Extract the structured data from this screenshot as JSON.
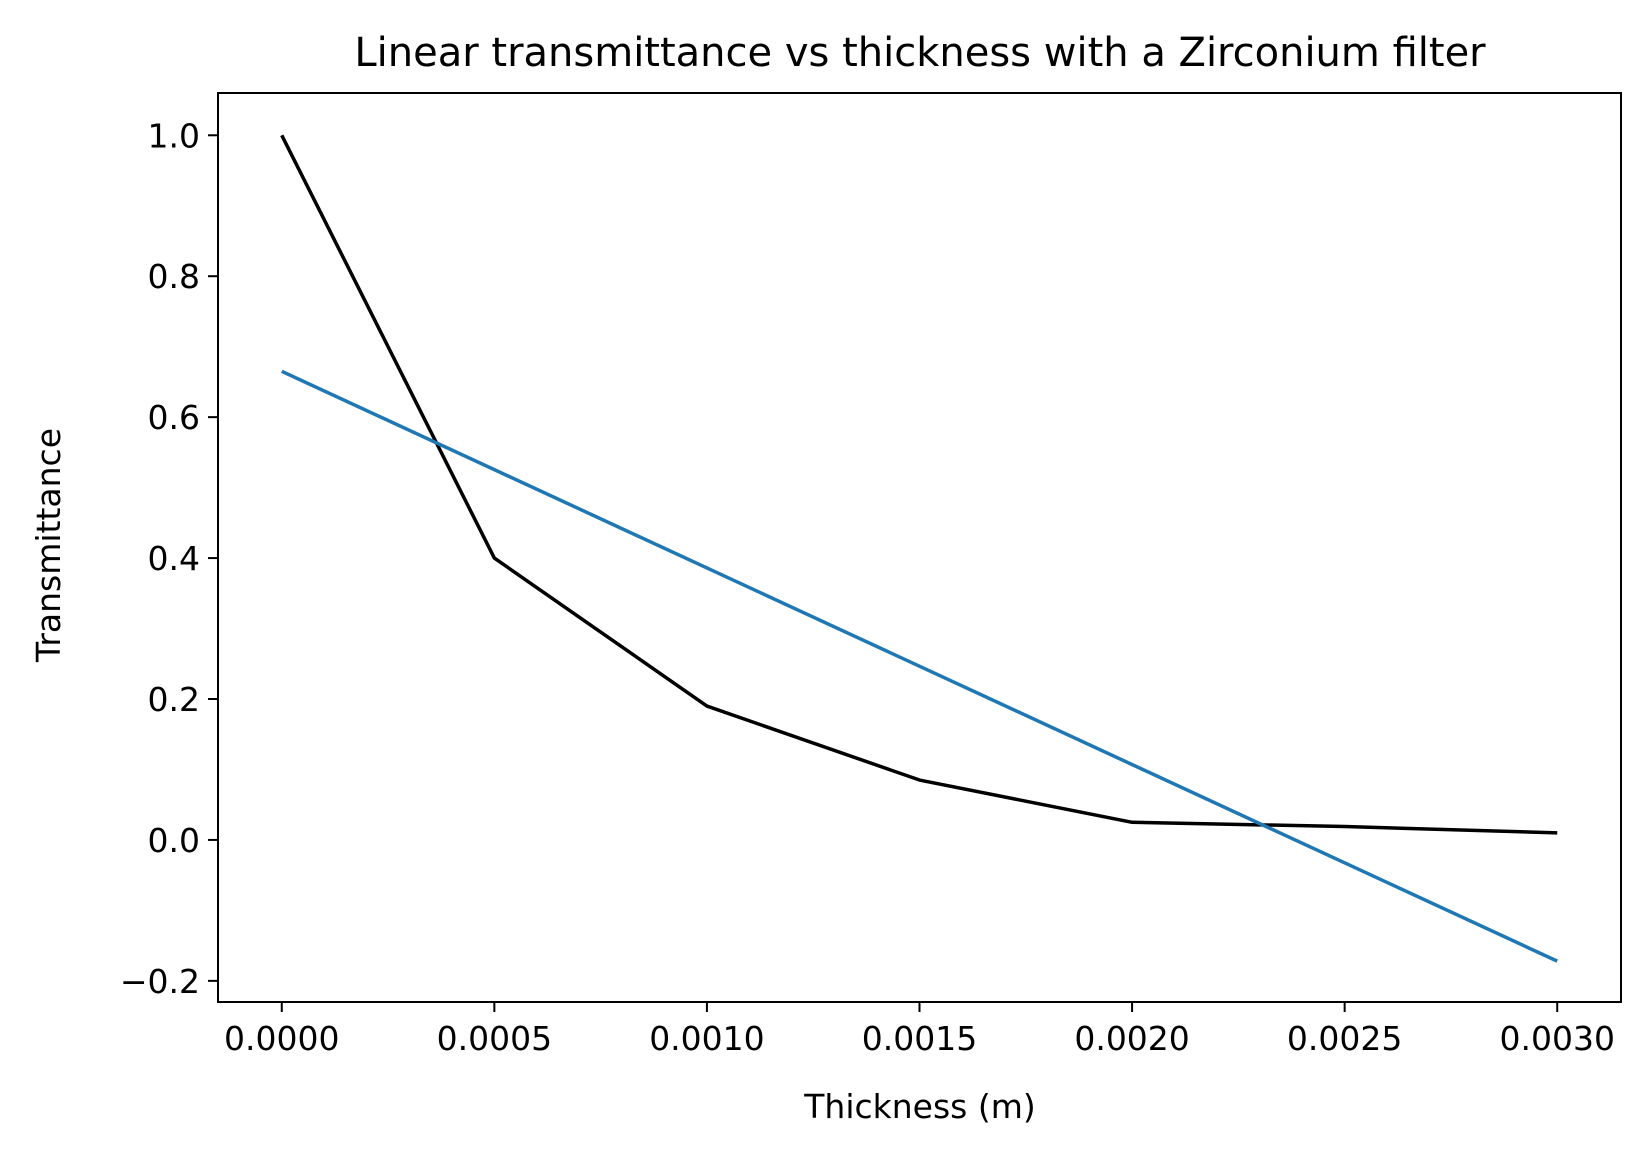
{
  "chart_data": {
    "type": "line",
    "title": "Linear transmittance vs thickness with a Zirconium filter",
    "xlabel": "Thickness (m)",
    "ylabel": "Transmittance",
    "xlim": [
      -0.00015,
      0.00315
    ],
    "ylim": [
      -0.23,
      1.06
    ],
    "x_ticks": [
      0.0,
      0.0005,
      0.001,
      0.0015,
      0.002,
      0.0025,
      0.003
    ],
    "x_tick_labels": [
      "0.0000",
      "0.0005",
      "0.0010",
      "0.0015",
      "0.0020",
      "0.0025",
      "0.0030"
    ],
    "y_ticks": [
      -0.2,
      0.0,
      0.2,
      0.4,
      0.6,
      0.8,
      1.0
    ],
    "y_tick_labels": [
      "−0.2",
      "0.0",
      "0.2",
      "0.4",
      "0.6",
      "0.8",
      "1.0"
    ],
    "grid": false,
    "series": [
      {
        "color": "#000000",
        "x": [
          0.0,
          0.0005,
          0.001,
          0.0015,
          0.002,
          0.0025,
          0.003
        ],
        "y": [
          1.0,
          0.4,
          0.19,
          0.085,
          0.025,
          0.019,
          0.01
        ]
      },
      {
        "color": "#1f77b4",
        "x": [
          0.0,
          0.003
        ],
        "y": [
          0.665,
          -0.172
        ]
      }
    ]
  }
}
